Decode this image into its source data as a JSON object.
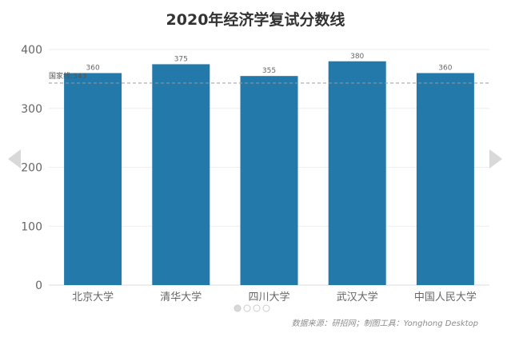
{
  "title": "2020年经济学复试分数线",
  "source_note": "数据来源：研招网；制图工具：Yonghong Desktop",
  "colors": {
    "bar": "#2379aa",
    "reference_line": "#999999",
    "arrow": "#d9d9d9",
    "dot_active": "#d9d9d9",
    "dot_inactive": "#ffffff"
  },
  "pagination": {
    "pages": 4,
    "active": 0
  },
  "chart_data": {
    "type": "bar",
    "title": "2020年经济学复试分数线",
    "categories": [
      "北京大学",
      "清华大学",
      "四川大学",
      "武汉大学",
      "中国人民大学"
    ],
    "values": [
      360,
      375,
      355,
      380,
      360
    ],
    "data_labels": [
      "360",
      "375",
      "355",
      "380",
      "360"
    ],
    "ylim": [
      0,
      400
    ],
    "yticks": [
      0,
      100,
      200,
      300,
      400
    ],
    "grid": true,
    "reference_line": {
      "label": "国家线:343",
      "value": 343,
      "style": "dashed"
    }
  }
}
